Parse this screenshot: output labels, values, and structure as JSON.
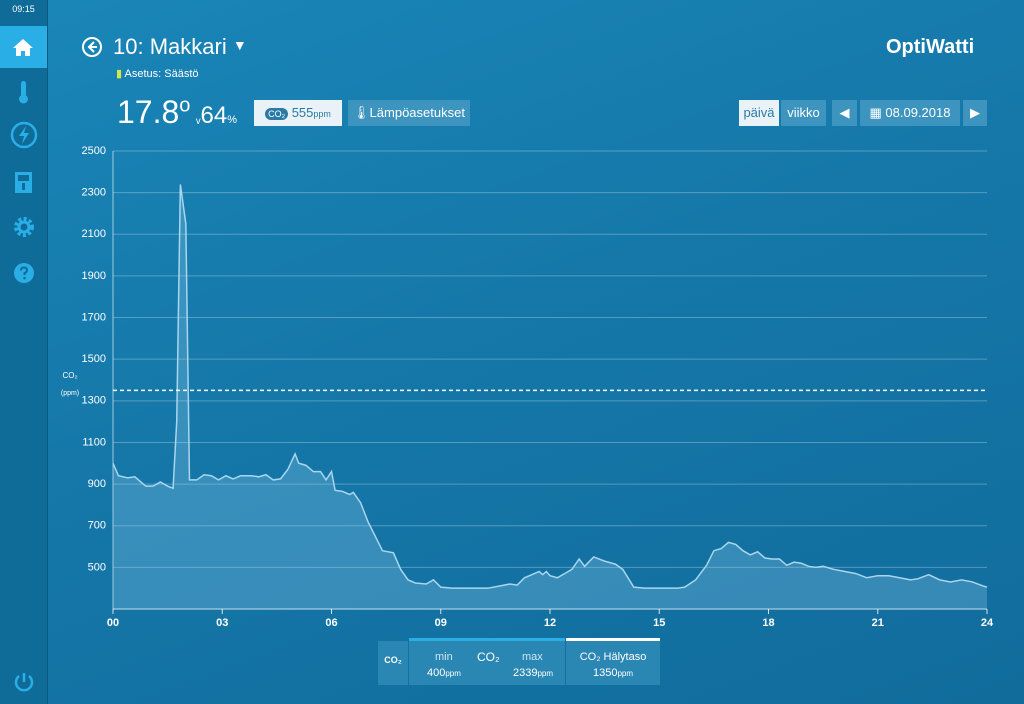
{
  "status": {
    "time": "09:15"
  },
  "header": {
    "room": "10: Makkari",
    "setting": "Asetus: Säästö",
    "brand": "OptiWatti"
  },
  "readings": {
    "temperature": "17.8",
    "temperature_unit": "o",
    "humidity": "64",
    "humidity_unit": "%",
    "co2": "555",
    "co2_unit": "ppm",
    "co2_icon": "CO₂",
    "settings_button": "Lämpöasetukset"
  },
  "period": {
    "day": "päivä",
    "week": "viikko",
    "date": "08.09.2018"
  },
  "stats": {
    "icon": "CO₂",
    "min_label": "min",
    "min_value": "400",
    "max_label": "max",
    "max_value": "2339",
    "alarm_label": "CO₂ Hälytaso",
    "alarm_value": "1350",
    "unit": "ppm"
  },
  "chart_data": {
    "type": "line",
    "y_icon": "CO₂",
    "y_label": "(ppm)",
    "x": [
      0,
      0.15,
      0.4,
      0.6,
      0.9,
      1.1,
      1.3,
      1.5,
      1.65,
      1.75,
      1.85,
      2.0,
      2.1,
      2.3,
      2.5,
      2.7,
      2.9,
      3.1,
      3.3,
      3.5,
      3.8,
      4.0,
      4.2,
      4.4,
      4.6,
      4.8,
      5.0,
      5.1,
      5.3,
      5.5,
      5.7,
      5.85,
      6.0,
      6.1,
      6.3,
      6.5,
      6.6,
      6.8,
      7.0,
      7.2,
      7.4,
      7.7,
      7.9,
      8.1,
      8.3,
      8.6,
      8.8,
      9.0,
      9.3,
      9.6,
      10.0,
      10.3,
      10.6,
      10.9,
      11.1,
      11.3,
      11.5,
      11.7,
      11.8,
      11.9,
      12.0,
      12.2,
      12.4,
      12.6,
      12.8,
      12.95,
      13.2,
      13.5,
      13.8,
      14.0,
      14.3,
      14.6,
      15.0,
      15.5,
      15.7,
      16.0,
      16.3,
      16.5,
      16.7,
      16.9,
      17.1,
      17.3,
      17.5,
      17.7,
      17.9,
      18.1,
      18.3,
      18.5,
      18.7,
      18.9,
      19.1,
      19.3,
      19.5,
      19.8,
      20.1,
      20.4,
      20.7,
      21.0,
      21.3,
      21.6,
      21.9,
      22.1,
      22.4,
      22.7,
      23.0,
      23.3,
      23.6,
      23.9,
      24
    ],
    "series": [
      {
        "name": "CO₂",
        "color": "#a8d6ee",
        "values": [
          1000,
          940,
          930,
          935,
          890,
          890,
          910,
          890,
          880,
          1200,
          2339,
          2150,
          920,
          920,
          945,
          940,
          920,
          940,
          925,
          940,
          940,
          935,
          945,
          920,
          925,
          970,
          1045,
          1000,
          990,
          960,
          960,
          920,
          960,
          870,
          865,
          850,
          860,
          810,
          720,
          650,
          580,
          570,
          490,
          440,
          425,
          420,
          440,
          405,
          400,
          400,
          400,
          400,
          410,
          420,
          415,
          450,
          465,
          480,
          465,
          480,
          460,
          450,
          470,
          490,
          540,
          505,
          550,
          530,
          515,
          490,
          405,
          400,
          400,
          400,
          405,
          440,
          510,
          580,
          590,
          620,
          610,
          580,
          560,
          575,
          545,
          540,
          540,
          510,
          525,
          520,
          505,
          500,
          505,
          490,
          480,
          470,
          450,
          460,
          460,
          450,
          440,
          445,
          465,
          440,
          430,
          440,
          430,
          410,
          405
        ]
      }
    ],
    "threshold": 1350,
    "xlim": [
      0,
      24
    ],
    "xticks": [
      {
        "value": 0,
        "label": "00"
      },
      {
        "value": 3,
        "label": "03"
      },
      {
        "value": 6,
        "label": "06"
      },
      {
        "value": 9,
        "label": "09"
      },
      12,
      15,
      18,
      21,
      24
    ],
    "ylim": [
      300,
      2500
    ],
    "yticks": [
      500,
      700,
      900,
      1100,
      1300,
      1500,
      1700,
      1900,
      2100,
      2300,
      2500
    ],
    "grid": true
  }
}
